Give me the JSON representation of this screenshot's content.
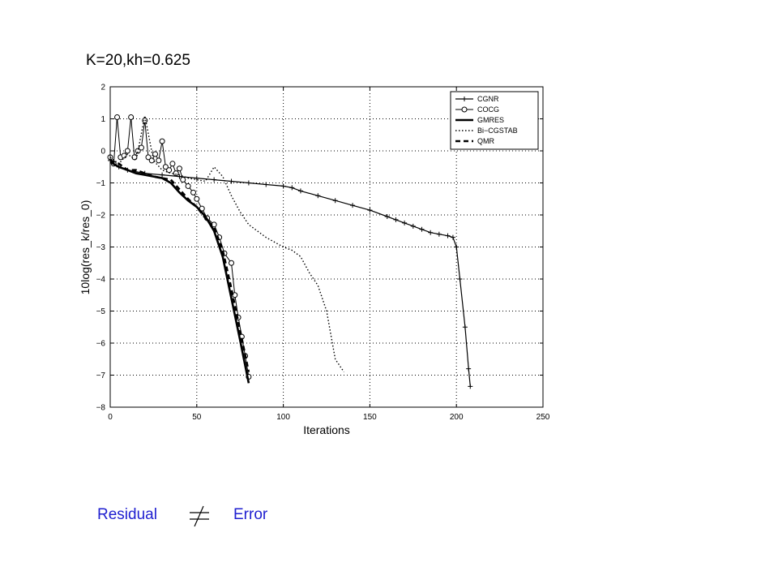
{
  "slide": {
    "title": "K=20,kh=0.625"
  },
  "footer": {
    "left_word": "Residual",
    "relation_symbol": "≠",
    "right_word": "Error",
    "color": "#1f1fd0"
  },
  "chart_data": {
    "type": "line",
    "title": "",
    "xlabel": "Iterations",
    "ylabel": "10log(res_k/res_0)",
    "xlim": [
      0,
      250
    ],
    "ylim": [
      -8,
      2
    ],
    "xticks": [
      "0",
      "50",
      "100",
      "150",
      "200",
      "250"
    ],
    "yticks": [
      "2",
      "1",
      "0",
      "−1",
      "−2",
      "−3",
      "−4",
      "−5",
      "−6",
      "−7",
      "−8"
    ],
    "grid": true,
    "legend_position": "top-right",
    "series": [
      {
        "name": "CGNR",
        "style": "solid-plus",
        "x": [
          0,
          5,
          10,
          20,
          30,
          40,
          50,
          60,
          70,
          80,
          90,
          100,
          105,
          110,
          120,
          130,
          140,
          150,
          160,
          165,
          170,
          175,
          180,
          185,
          190,
          195,
          198,
          200,
          202,
          205,
          207,
          208
        ],
        "y": [
          -0.3,
          -0.5,
          -0.6,
          -0.7,
          -0.75,
          -0.8,
          -0.85,
          -0.9,
          -0.95,
          -1.0,
          -1.05,
          -1.1,
          -1.15,
          -1.25,
          -1.4,
          -1.55,
          -1.7,
          -1.85,
          -2.05,
          -2.15,
          -2.25,
          -2.35,
          -2.45,
          -2.55,
          -2.6,
          -2.65,
          -2.7,
          -3.0,
          -4.0,
          -5.5,
          -6.8,
          -7.35
        ]
      },
      {
        "name": "COCG",
        "style": "solid-circle",
        "x": [
          0,
          2,
          4,
          6,
          8,
          10,
          12,
          14,
          16,
          18,
          20,
          22,
          24,
          26,
          28,
          30,
          32,
          34,
          36,
          38,
          40,
          42,
          45,
          48,
          50,
          53,
          56,
          60,
          63,
          66,
          70,
          72,
          74,
          76,
          78,
          80
        ],
        "y": [
          -0.2,
          -0.4,
          1.05,
          -0.2,
          -0.15,
          0.0,
          1.05,
          -0.2,
          0.0,
          0.1,
          0.95,
          -0.2,
          -0.3,
          -0.1,
          -0.3,
          0.3,
          -0.5,
          -0.6,
          -0.4,
          -0.7,
          -0.55,
          -0.9,
          -1.1,
          -1.3,
          -1.5,
          -1.8,
          -2.1,
          -2.3,
          -2.7,
          -3.2,
          -3.5,
          -4.5,
          -5.2,
          -5.8,
          -6.4,
          -7.05
        ]
      },
      {
        "name": "GMRES",
        "style": "solid-thick",
        "x": [
          0,
          5,
          10,
          15,
          20,
          25,
          30,
          35,
          40,
          45,
          50,
          55,
          60,
          65,
          70,
          75,
          80
        ],
        "y": [
          -0.35,
          -0.5,
          -0.6,
          -0.7,
          -0.75,
          -0.8,
          -0.85,
          -1.0,
          -1.3,
          -1.55,
          -1.75,
          -2.05,
          -2.5,
          -3.3,
          -4.6,
          -5.9,
          -7.25
        ]
      },
      {
        "name": "Bi−CGSTAB",
        "style": "dotted",
        "x": [
          0,
          5,
          10,
          15,
          20,
          25,
          30,
          35,
          40,
          45,
          50,
          55,
          60,
          65,
          70,
          75,
          80,
          85,
          90,
          95,
          100,
          105,
          110,
          115,
          120,
          125,
          130,
          135
        ],
        "y": [
          -0.2,
          -0.4,
          -0.1,
          -0.3,
          1.1,
          -0.3,
          -0.6,
          -0.7,
          -0.75,
          -0.85,
          -0.9,
          -0.95,
          -0.5,
          -0.8,
          -1.4,
          -1.9,
          -2.3,
          -2.5,
          -2.7,
          -2.85,
          -3.0,
          -3.1,
          -3.3,
          -3.8,
          -4.2,
          -5.0,
          -6.5,
          -6.9
        ]
      },
      {
        "name": "QMR",
        "style": "dashed-thick",
        "x": [
          0,
          5,
          10,
          15,
          20,
          25,
          30,
          35,
          40,
          45,
          50,
          55,
          60,
          65,
          70,
          75,
          80
        ],
        "y": [
          -0.3,
          -0.4,
          -0.6,
          -0.6,
          -0.7,
          -0.8,
          -0.85,
          -0.9,
          -1.2,
          -1.5,
          -1.75,
          -2.1,
          -2.4,
          -3.1,
          -4.3,
          -5.6,
          -6.9
        ]
      }
    ]
  }
}
